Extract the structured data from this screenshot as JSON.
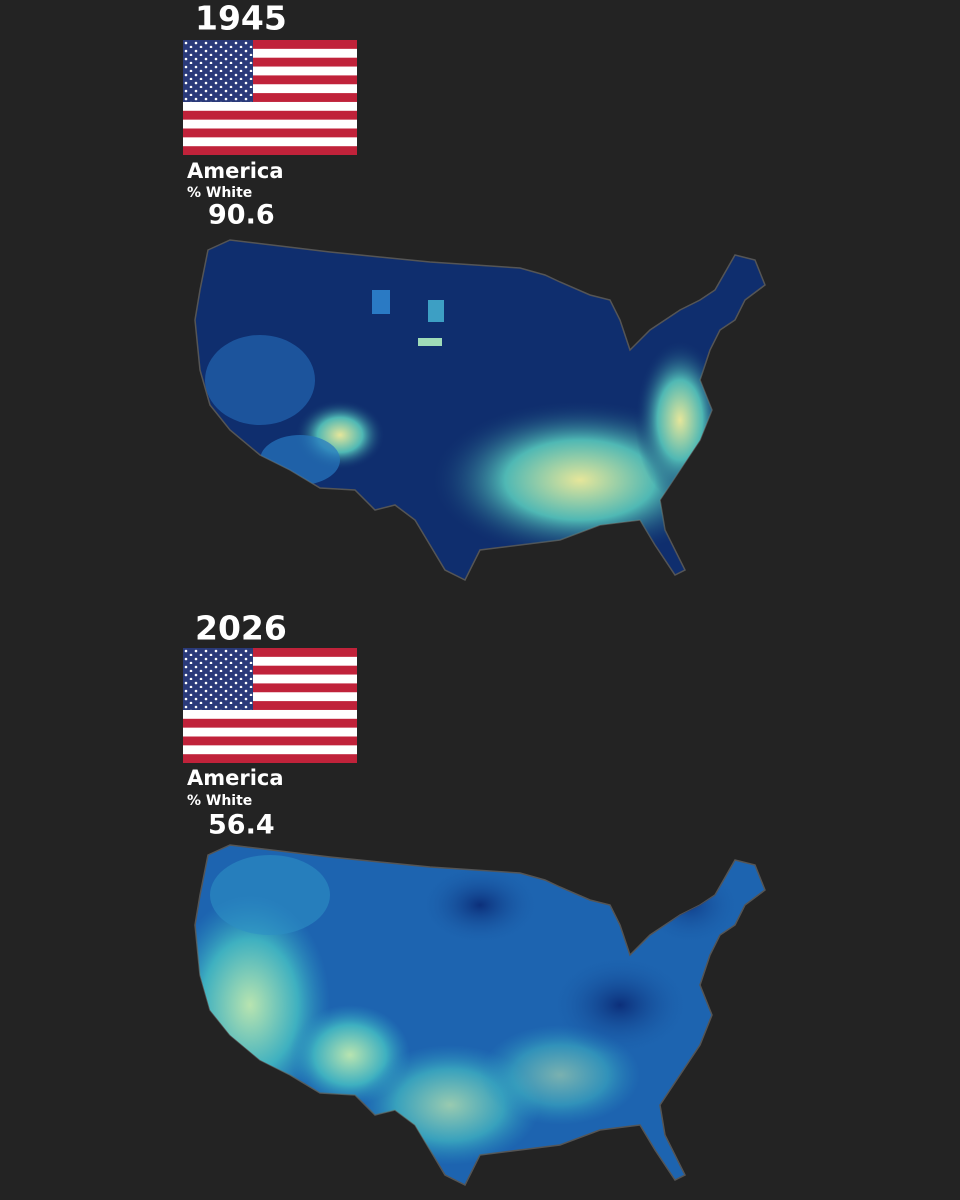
{
  "panels": [
    {
      "year": 1945,
      "label": "America",
      "metric": "% White",
      "value": 90.6
    },
    {
      "year": 2026,
      "label": "America",
      "metric": "% White",
      "value": 56.4
    }
  ]
}
